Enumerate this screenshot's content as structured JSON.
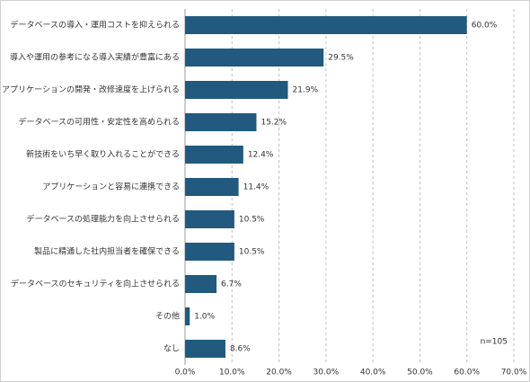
{
  "chart_data": {
    "type": "bar",
    "orientation": "horizontal",
    "categories": [
      "データベースの導入・運用コストを抑えられる",
      "導入や運用の参考になる導入実績が豊富にある",
      "アプリケーションの開発・改修速度を上げられる",
      "データベースの可用性・安定性を高められる",
      "新技術をいち早く取り入れることができる",
      "アプリケーションと容易に連携できる",
      "データベースの処理能力を向上させられる",
      "製品に精通した社内担当者を確保できる",
      "データベースのセキュリティを向上させられる",
      "その他",
      "なし"
    ],
    "values": [
      60.0,
      29.5,
      21.9,
      15.2,
      12.4,
      11.4,
      10.5,
      10.5,
      6.7,
      1.0,
      8.6
    ],
    "value_labels": [
      "60.0%",
      "29.5%",
      "21.9%",
      "15.2%",
      "12.4%",
      "11.4%",
      "10.5%",
      "10.5%",
      "6.7%",
      "1.0%",
      "8.6%"
    ],
    "color": "#215a7e",
    "xlim": [
      0,
      70
    ],
    "xticks": [
      {
        "value": 0,
        "label": "0.0%"
      },
      {
        "value": 10,
        "label": "10.0%"
      },
      {
        "value": 20,
        "label": "20.0%"
      },
      {
        "value": 30,
        "label": "30.0%"
      },
      {
        "value": 40,
        "label": "40.0%"
      },
      {
        "value": 50,
        "label": "50.0%"
      },
      {
        "value": 60,
        "label": "60.0%"
      },
      {
        "value": 70,
        "label": "70.0%"
      }
    ],
    "grid": true,
    "annotation": "n=105"
  }
}
